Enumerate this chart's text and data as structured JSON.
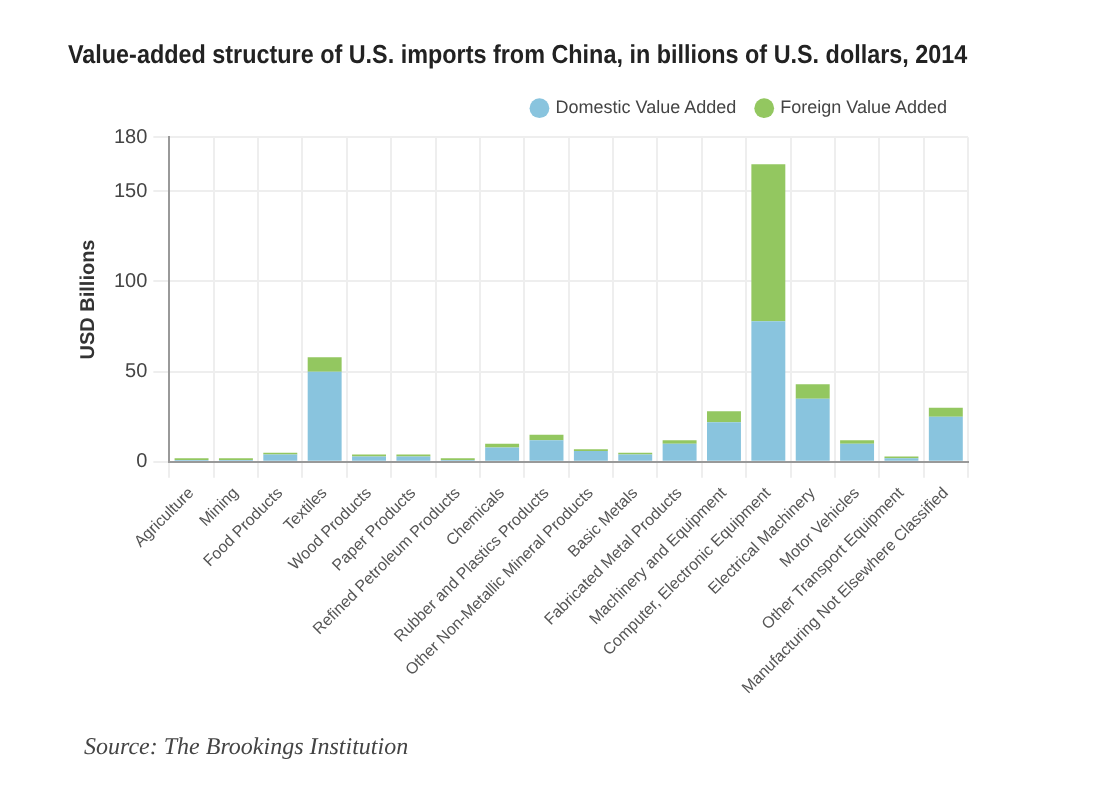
{
  "chart_data": {
    "type": "bar",
    "stacked": true,
    "title": "Value-added structure of U.S. imports from China, in billions of U.S. dollars, 2014",
    "ylabel": "USD Billions",
    "categories": [
      "Agriculture",
      "Mining",
      "Food Products",
      "Textiles",
      "Wood Products",
      "Paper Products",
      "Refined Petroleum Products",
      "Chemicals",
      "Rubber and Plastics Products",
      "Other Non-Metallic Mineral Products",
      "Basic Metals",
      "Fabricated Metal Products",
      "Machinery and Equipment",
      "Computer, Electronic Equipment",
      "Electrical Machinery",
      "Motor Vehicles",
      "Other Transport Equipment",
      "Manufacturing Not Elsewhere Classified"
    ],
    "series": [
      {
        "name": "Domestic Value Added",
        "color": "#89c4de",
        "values": [
          1,
          1,
          4,
          50,
          3,
          3,
          1,
          8,
          12,
          6,
          4,
          10,
          22,
          78,
          35,
          10,
          2,
          25
        ]
      },
      {
        "name": "Foreign Value Added",
        "color": "#93c760",
        "values": [
          1,
          1,
          1,
          8,
          1,
          1,
          1,
          2,
          3,
          1,
          1,
          2,
          6,
          87,
          8,
          2,
          1,
          5
        ]
      }
    ],
    "ylim": [
      0,
      180
    ],
    "yticks": [
      0,
      50,
      100,
      150,
      180
    ],
    "grid": true,
    "legend": "top right",
    "annotations": [
      "Source: The Brookings Institution"
    ]
  }
}
